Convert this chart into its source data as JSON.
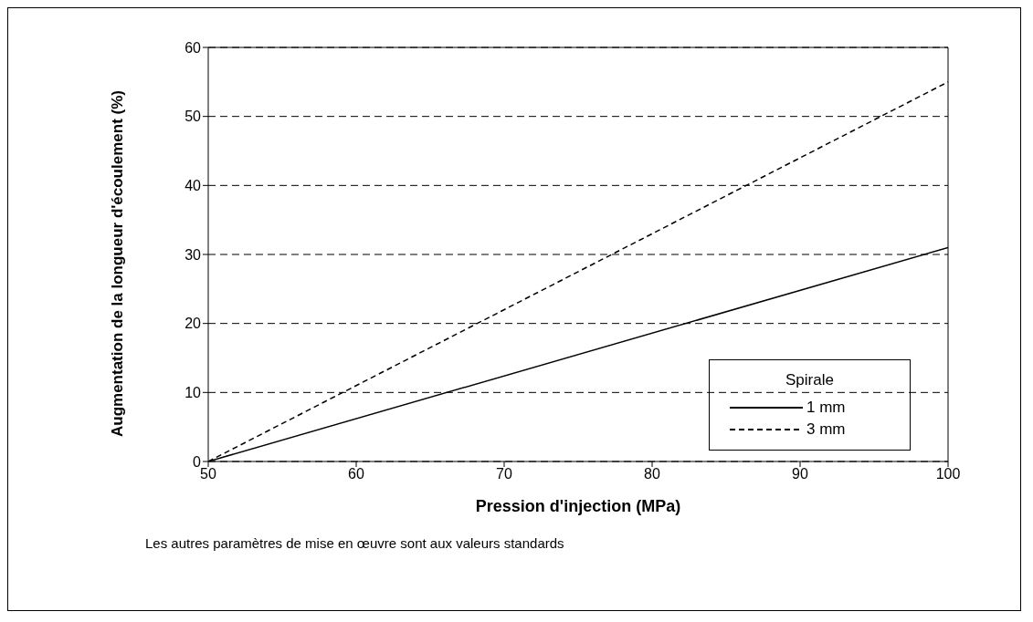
{
  "chart_data": {
    "type": "line",
    "xlabel": "Pression d'injection (MPa)",
    "ylabel": "Augmentation de la longueur d'écoulement (%)",
    "legend_title": "Spirale",
    "legend": "bottom right",
    "grid": "y",
    "marker": "none",
    "x": [
      50,
      100
    ],
    "xlim": [
      50,
      100
    ],
    "xticks": [
      50,
      60,
      70,
      80,
      90,
      100
    ],
    "ylim": [
      0,
      60
    ],
    "yticks": [
      0,
      10,
      20,
      30,
      40,
      50,
      60
    ],
    "series": [
      {
        "name": "1 mm",
        "color": "#000000",
        "line_style": "solid",
        "values": [
          0,
          31
        ]
      },
      {
        "name": "3 mm",
        "color": "#000000",
        "line_style": "dashed",
        "values": [
          0,
          55
        ]
      }
    ],
    "annotations": [
      "Les autres paramètres de mise en œuvre sont aux valeurs standards"
    ]
  }
}
